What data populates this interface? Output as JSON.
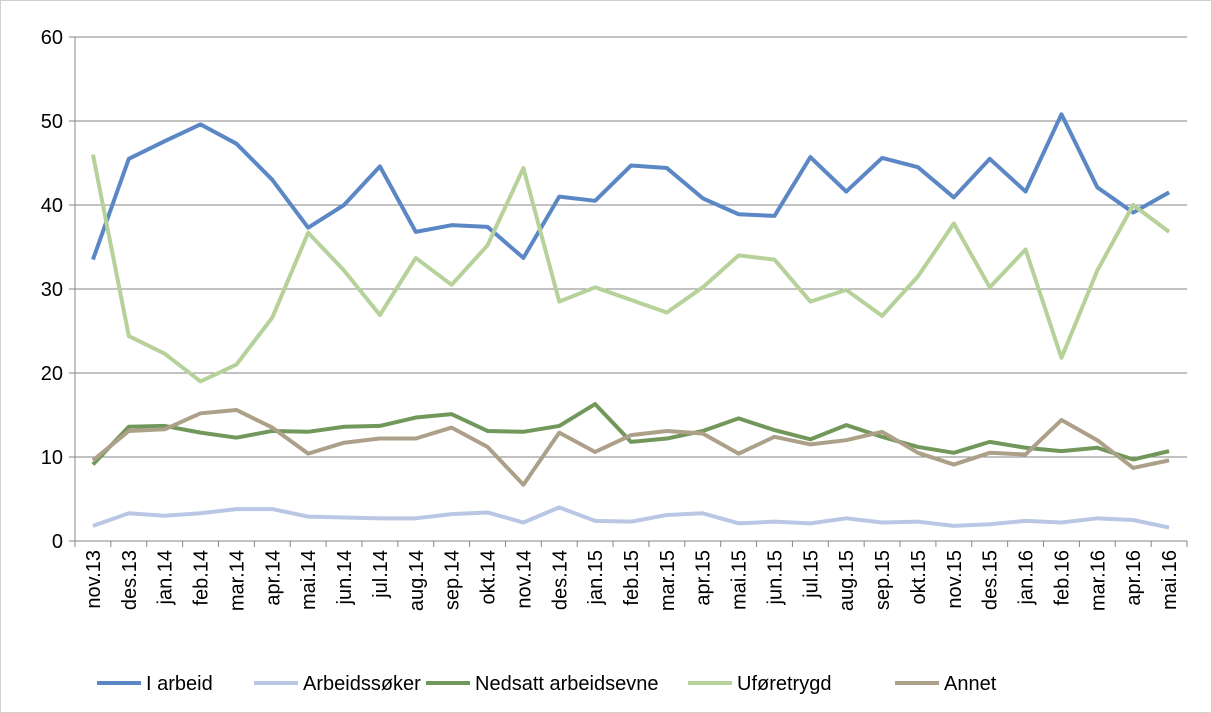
{
  "chart_data": {
    "type": "line",
    "categories": [
      "nov.13",
      "des.13",
      "jan.14",
      "feb.14",
      "mar.14",
      "apr.14",
      "mai.14",
      "jun.14",
      "jul.14",
      "aug.14",
      "sep.14",
      "okt.14",
      "nov.14",
      "des.14",
      "jan.15",
      "feb.15",
      "mar.15",
      "apr.15",
      "mai.15",
      "jun.15",
      "jul.15",
      "aug.15",
      "sep.15",
      "okt.15",
      "nov.15",
      "des.15",
      "jan.16",
      "feb.16",
      "mar.16",
      "apr.16",
      "mai.16"
    ],
    "series": [
      {
        "name": "I arbeid",
        "color": "#5b87c5",
        "values": [
          33.5,
          45.5,
          47.6,
          49.6,
          47.3,
          43,
          37.3,
          40,
          44.6,
          36.8,
          37.6,
          37.4,
          33.7,
          41,
          40.5,
          44.7,
          44.4,
          40.8,
          38.9,
          38.7,
          45.7,
          41.6,
          45.6,
          44.5,
          40.9,
          45.5,
          41.6,
          50.8,
          42.1,
          39.1,
          41.5
        ]
      },
      {
        "name": "Arbeidssøker",
        "color": "#b9c7e4",
        "values": [
          1.8,
          3.3,
          3.0,
          3.3,
          3.8,
          3.8,
          2.9,
          2.8,
          2.7,
          2.7,
          3.2,
          3.4,
          2.2,
          4.0,
          2.4,
          2.3,
          3.1,
          3.3,
          2.1,
          2.3,
          2.1,
          2.7,
          2.2,
          2.3,
          1.8,
          2.0,
          2.4,
          2.2,
          2.7,
          2.5,
          1.6
        ]
      },
      {
        "name": "Nedsatt arbeidsevne",
        "color": "#71985a",
        "values": [
          9.1,
          13.6,
          13.7,
          12.9,
          12.3,
          13.1,
          13.0,
          13.6,
          13.7,
          14.7,
          15.1,
          13.1,
          13.0,
          13.7,
          16.3,
          11.8,
          12.2,
          13.1,
          14.6,
          13.2,
          12.1,
          13.8,
          12.4,
          11.2,
          10.5,
          11.8,
          11.1,
          10.7,
          11.1,
          9.7,
          10.7
        ]
      },
      {
        "name": "Uføretrygd",
        "color": "#b6d19a",
        "values": [
          46,
          24.4,
          22.3,
          19,
          21,
          26.6,
          36.7,
          32.2,
          26.9,
          33.7,
          30.5,
          35.2,
          44.4,
          28.5,
          30.2,
          28.7,
          27.2,
          30.2,
          34,
          33.5,
          28.5,
          29.9,
          26.8,
          31.5,
          37.8,
          30.2,
          34.7,
          21.8,
          32.2,
          40,
          36.8
        ]
      },
      {
        "name": "Annet",
        "color": "#aca089",
        "values": [
          9.6,
          13.1,
          13.3,
          15.2,
          15.6,
          13.5,
          10.4,
          11.7,
          12.2,
          12.2,
          13.5,
          11.2,
          6.7,
          12.9,
          10.6,
          12.6,
          13.1,
          12.8,
          10.4,
          12.4,
          11.5,
          12,
          13,
          10.5,
          9.1,
          10.5,
          10.3,
          14.4,
          12,
          8.7,
          9.6
        ]
      }
    ],
    "ylim": [
      0,
      60
    ],
    "yticks": [
      0,
      10,
      20,
      30,
      40,
      50,
      60
    ],
    "grid": true,
    "legend": "bottom"
  }
}
